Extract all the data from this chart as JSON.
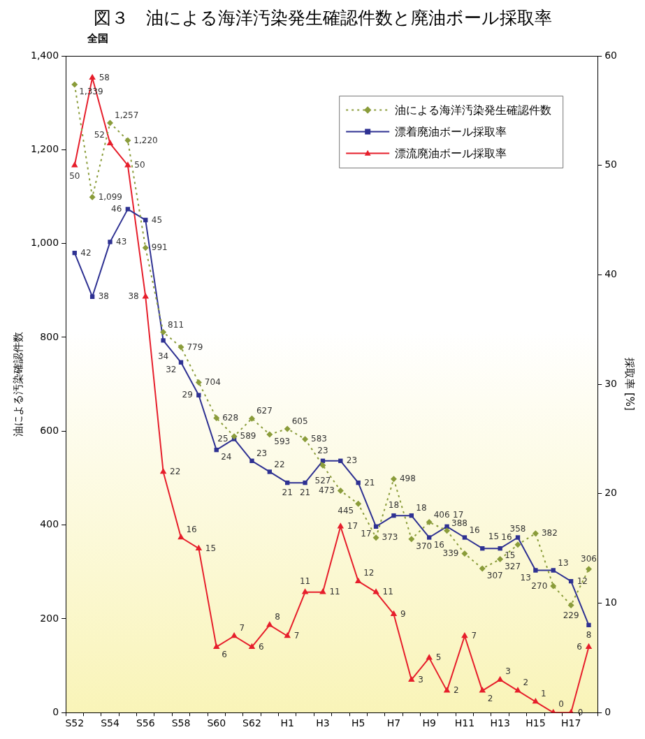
{
  "chart_data": {
    "type": "line",
    "title": "図３　油による海洋汚染発生確認件数と廃油ボール採取率",
    "subtitle": "全国",
    "ylabel": "油による汚染確認件数",
    "y2label": "採取率 [%]",
    "categories": [
      "S52",
      null,
      "S54",
      null,
      "S56",
      null,
      "S58",
      null,
      "S60",
      null,
      "S62",
      null,
      "H1",
      null,
      "H3",
      null,
      "H5",
      null,
      "H7",
      null,
      "H9",
      null,
      "H11",
      null,
      "H13",
      null,
      "H15",
      null,
      "H17",
      null
    ],
    "series": [
      {
        "name": "油による海洋汚染発生確認件数",
        "color": "#8a9c3a",
        "marker": "diamond",
        "line_style": "dotted",
        "values": [
          1339,
          1099,
          1257,
          1220,
          991,
          811,
          779,
          704,
          628,
          589,
          627,
          593,
          605,
          583,
          527,
          473,
          445,
          373,
          498,
          370,
          406,
          388,
          339,
          307,
          327,
          358,
          382,
          270,
          229,
          306
        ],
        "value_labels": [
          "1,339",
          "1,099",
          "1,257",
          "1,220",
          "991",
          "811",
          "779",
          "704",
          "628",
          "589",
          "627",
          "593",
          "605",
          "583",
          "527",
          "473",
          "445",
          "373",
          "498",
          "370",
          "406",
          "388",
          "339",
          "307",
          "327",
          "358",
          "382",
          "270",
          "229",
          "306"
        ]
      },
      {
        "name": "漂着廃油ボール採取率",
        "color": "#2e3192",
        "marker": "square",
        "axis": "y2",
        "values": [
          42,
          38,
          43,
          46,
          45,
          34,
          32,
          29,
          24,
          25,
          23,
          22,
          21,
          21,
          23,
          23,
          21,
          17,
          18,
          18,
          16,
          17,
          16,
          15,
          15,
          16,
          13,
          13,
          12,
          8
        ]
      },
      {
        "name": "漂流廃油ボール採取率",
        "color": "#e61e2b",
        "marker": "triangle",
        "axis": "y2",
        "values": [
          50,
          58,
          52,
          50,
          38,
          22,
          16,
          15,
          6,
          7,
          6,
          8,
          7,
          11,
          11,
          17,
          12,
          11,
          9,
          3,
          5,
          2,
          7,
          2,
          3,
          2,
          1,
          0,
          0,
          6
        ]
      }
    ],
    "ylim": [
      0,
      1400
    ],
    "yticks": [
      0,
      200,
      400,
      600,
      800,
      {
        "value": 1000,
        "label": "1,000"
      },
      {
        "value": 1200,
        "label": "1,200"
      },
      {
        "value": 1400,
        "label": "1,400"
      }
    ],
    "y2lim": [
      0,
      60
    ],
    "y2ticks": [
      0,
      10,
      20,
      30,
      40,
      50,
      60
    ],
    "grid": false,
    "legend": "top right",
    "data_labels": true
  }
}
